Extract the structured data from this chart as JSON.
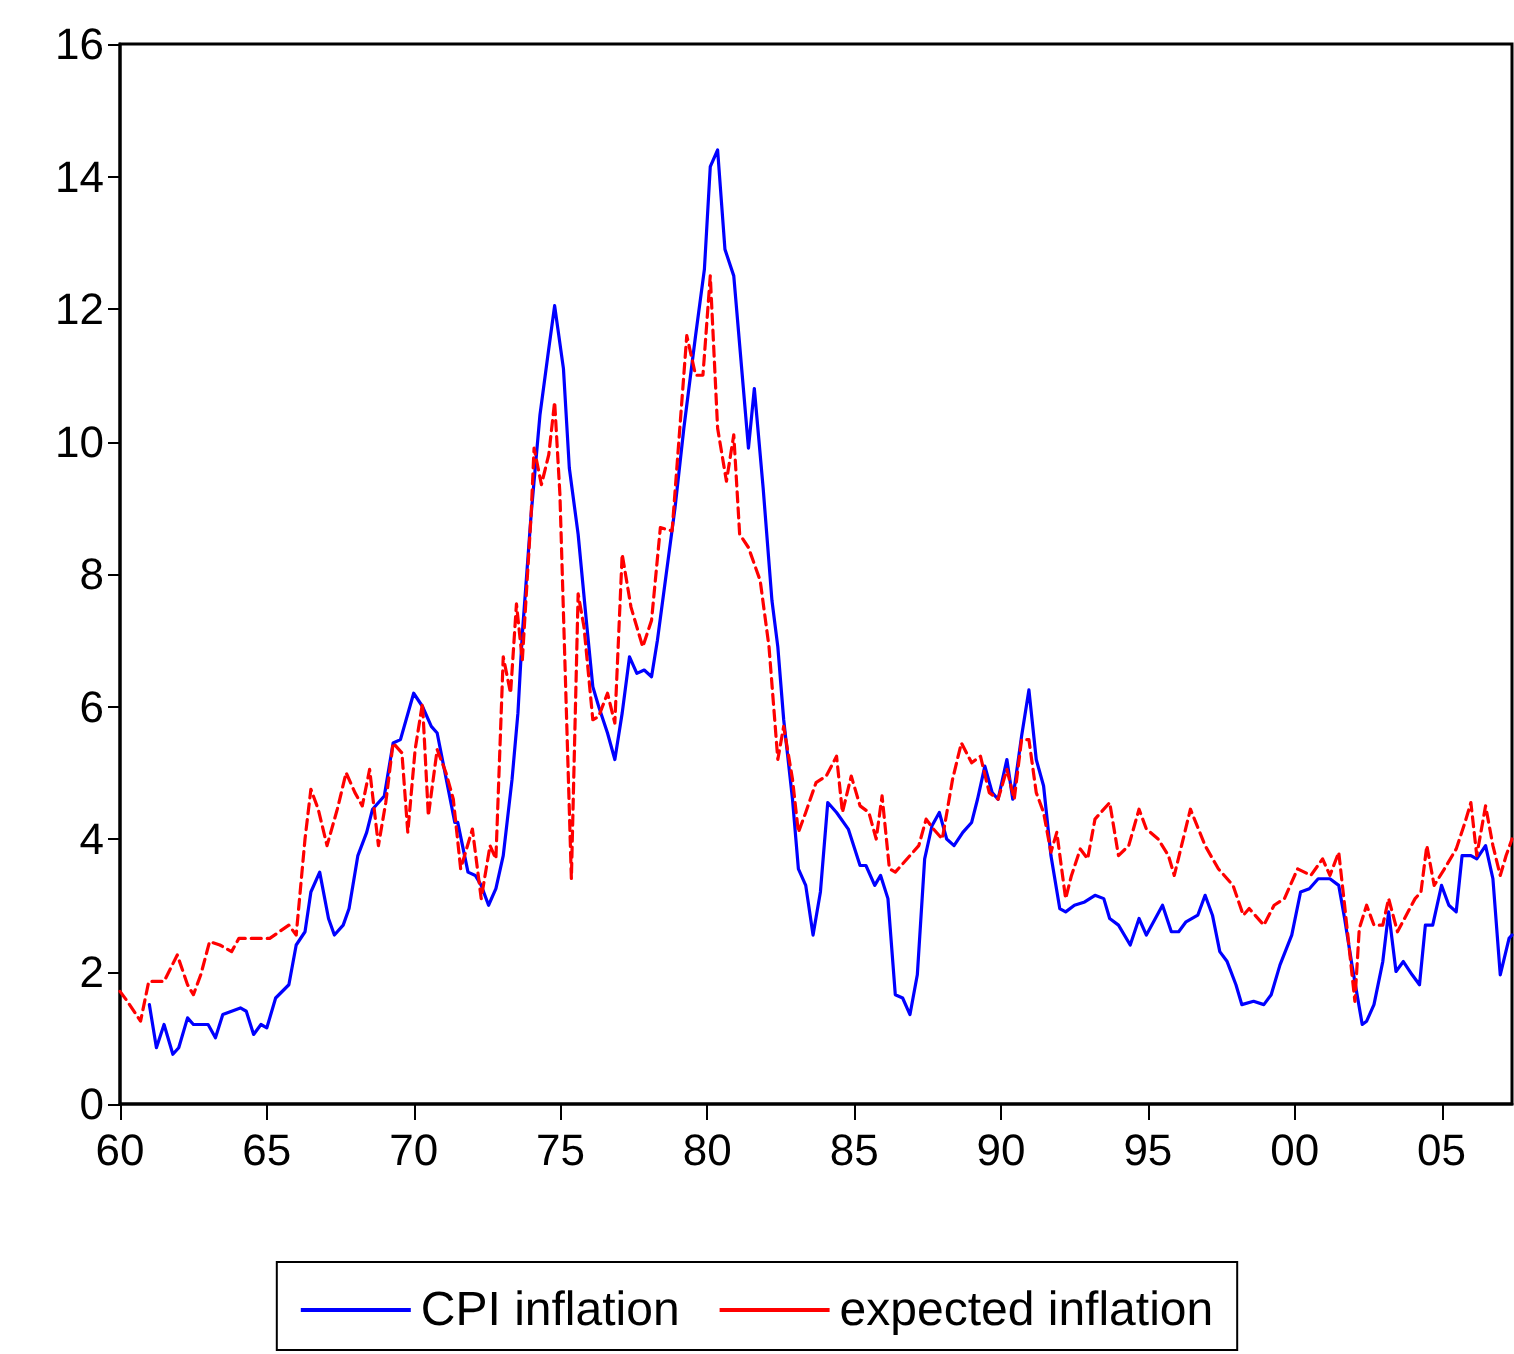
{
  "chart_data": {
    "type": "line",
    "xlim": [
      1960,
      2007.4
    ],
    "xticks": [
      {
        "value": 1960,
        "label": "60"
      },
      {
        "value": 1965,
        "label": "65"
      },
      {
        "value": 1970,
        "label": "70"
      },
      {
        "value": 1975,
        "label": "75"
      },
      {
        "value": 1980,
        "label": "80"
      },
      {
        "value": 1985,
        "label": "85"
      },
      {
        "value": 1990,
        "label": "90"
      },
      {
        "value": 1995,
        "label": "95"
      },
      {
        "value": 2000,
        "label": "00"
      },
      {
        "value": 2005,
        "label": "05"
      }
    ],
    "ylim": [
      0,
      16
    ],
    "yticks": [
      0,
      2,
      4,
      6,
      8,
      10,
      12,
      14,
      16
    ],
    "grid": false,
    "legend": "bottom",
    "marker": "none",
    "series": [
      {
        "name": "CPI inflation",
        "color": "#0000ff",
        "line_style": "solid",
        "x": [
          1961.0,
          1961.24,
          1961.5,
          1961.8,
          1962.0,
          1962.3,
          1962.5,
          1963.0,
          1963.25,
          1963.5,
          1964.1,
          1964.3,
          1964.55,
          1964.8,
          1965.0,
          1965.3,
          1965.75,
          1966.0,
          1966.3,
          1966.5,
          1966.8,
          1967.1,
          1967.3,
          1967.6,
          1967.8,
          1968.1,
          1968.4,
          1968.6,
          1969.0,
          1969.3,
          1969.55,
          1970.0,
          1970.3,
          1970.6,
          1970.8,
          1971.4,
          1971.5,
          1971.85,
          1972.1,
          1972.3,
          1972.55,
          1972.8,
          1973.05,
          1973.35,
          1973.55,
          1973.7,
          1974.0,
          1974.3,
          1974.6,
          1974.8,
          1975.1,
          1975.3,
          1975.6,
          1975.9,
          1976.1,
          1976.3,
          1976.6,
          1976.85,
          1977.1,
          1977.35,
          1977.6,
          1977.85,
          1978.1,
          1978.3,
          1978.6,
          1978.9,
          1979.2,
          1979.6,
          1979.9,
          1980.1,
          1980.35,
          1980.6,
          1980.9,
          1981.15,
          1981.4,
          1981.6,
          1981.9,
          1982.2,
          1982.4,
          1982.6,
          1982.9,
          1983.1,
          1983.35,
          1983.6,
          1983.85,
          1984.1,
          1984.4,
          1984.8,
          1985.2,
          1985.4,
          1985.7,
          1985.9,
          1986.15,
          1986.4,
          1986.65,
          1986.9,
          1987.15,
          1987.4,
          1987.65,
          1987.9,
          1988.15,
          1988.4,
          1988.7,
          1989.0,
          1989.2,
          1989.45,
          1989.7,
          1989.9,
          1990.2,
          1990.4,
          1990.7,
          1990.95,
          1991.2,
          1991.45,
          1991.7,
          1992.0,
          1992.2,
          1992.5,
          1992.85,
          1993.2,
          1993.5,
          1993.7,
          1994.0,
          1994.4,
          1994.7,
          1994.95,
          1995.5,
          1995.8,
          1996.05,
          1996.3,
          1996.7,
          1996.95,
          1997.2,
          1997.45,
          1997.7,
          1998.0,
          1998.2,
          1998.6,
          1998.95,
          1999.2,
          1999.5,
          1999.9,
          2000.2,
          2000.5,
          2000.8,
          2001.2,
          2001.5,
          2001.7,
          2001.95,
          2002.3,
          2002.45,
          2002.7,
          2003.0,
          2003.2,
          2003.45,
          2003.7,
          2004.0,
          2004.25,
          2004.45,
          2004.7,
          2005.0,
          2005.25,
          2005.5,
          2005.7,
          2006.0,
          2006.2,
          2006.5,
          2006.75,
          2007.0,
          2007.3,
          2007.4
        ],
        "values": [
          1.5,
          0.85,
          1.2,
          0.75,
          0.85,
          1.3,
          1.2,
          1.2,
          1.0,
          1.35,
          1.45,
          1.4,
          1.05,
          1.2,
          1.15,
          1.6,
          1.8,
          2.4,
          2.6,
          3.2,
          3.5,
          2.8,
          2.55,
          2.7,
          2.95,
          3.75,
          4.1,
          4.45,
          4.65,
          5.45,
          5.5,
          6.2,
          6.0,
          5.7,
          5.6,
          4.25,
          4.25,
          3.5,
          3.45,
          3.3,
          3.0,
          3.25,
          3.75,
          4.9,
          5.9,
          7.1,
          8.9,
          10.4,
          11.4,
          12.05,
          11.1,
          9.6,
          8.6,
          7.2,
          6.3,
          6.0,
          5.6,
          5.2,
          5.9,
          6.75,
          6.5,
          6.55,
          6.45,
          7.0,
          8.0,
          9.0,
          10.2,
          11.6,
          12.6,
          14.15,
          14.4,
          12.9,
          12.5,
          11.2,
          9.9,
          10.8,
          9.3,
          7.6,
          6.9,
          5.8,
          4.6,
          3.55,
          3.3,
          2.55,
          3.2,
          4.55,
          4.4,
          4.15,
          3.6,
          3.6,
          3.3,
          3.45,
          3.1,
          1.65,
          1.6,
          1.35,
          1.95,
          3.7,
          4.2,
          4.4,
          4.0,
          3.9,
          4.1,
          4.25,
          4.6,
          5.1,
          4.7,
          4.6,
          5.2,
          4.6,
          5.55,
          6.25,
          5.2,
          4.8,
          3.75,
          2.95,
          2.9,
          3.0,
          3.05,
          3.15,
          3.1,
          2.8,
          2.7,
          2.4,
          2.8,
          2.55,
          3.0,
          2.6,
          2.6,
          2.75,
          2.85,
          3.15,
          2.85,
          2.3,
          2.15,
          1.8,
          1.5,
          1.55,
          1.5,
          1.65,
          2.1,
          2.55,
          3.2,
          3.25,
          3.4,
          3.4,
          3.3,
          2.8,
          2.1,
          1.2,
          1.25,
          1.5,
          2.15,
          2.9,
          2.0,
          2.15,
          1.95,
          1.8,
          2.7,
          2.7,
          3.3,
          3.0,
          2.9,
          3.75,
          3.75,
          3.7,
          3.9,
          3.4,
          1.95,
          2.5,
          2.55
        ]
      },
      {
        "name": "expected inflation",
        "color": "#ff0000",
        "line_style": "dashed",
        "x": [
          1960.0,
          1960.25,
          1960.7,
          1960.98,
          1961.5,
          1961.95,
          1962.3,
          1962.5,
          1962.75,
          1963.05,
          1963.4,
          1963.8,
          1964.05,
          1964.45,
          1965.1,
          1965.75,
          1966.0,
          1966.3,
          1966.5,
          1966.75,
          1967.05,
          1967.4,
          1967.7,
          1968.0,
          1968.25,
          1968.5,
          1968.8,
          1969.05,
          1969.3,
          1969.6,
          1969.8,
          1970.05,
          1970.3,
          1970.5,
          1970.8,
          1971.1,
          1971.35,
          1971.6,
          1971.8,
          1972.0,
          1972.3,
          1972.6,
          1972.8,
          1973.05,
          1973.3,
          1973.5,
          1973.7,
          1974.0,
          1974.1,
          1974.35,
          1974.6,
          1974.8,
          1974.98,
          1975.37,
          1975.6,
          1975.8,
          1976.1,
          1976.3,
          1976.6,
          1976.85,
          1977.1,
          1977.4,
          1977.8,
          1978.1,
          1978.4,
          1978.8,
          1979.3,
          1979.6,
          1979.85,
          1980.1,
          1980.35,
          1980.65,
          1980.9,
          1981.1,
          1981.4,
          1981.8,
          1982.1,
          1982.4,
          1982.6,
          1982.9,
          1983.1,
          1983.35,
          1983.7,
          1984.05,
          1984.4,
          1984.6,
          1984.9,
          1985.2,
          1985.5,
          1985.75,
          1985.95,
          1986.2,
          1986.4,
          1986.9,
          1987.2,
          1987.45,
          1987.7,
          1988.0,
          1988.35,
          1988.65,
          1989.0,
          1989.3,
          1989.6,
          1989.9,
          1990.2,
          1990.45,
          1990.7,
          1990.95,
          1991.2,
          1991.45,
          1991.7,
          1991.9,
          1992.2,
          1992.4,
          1992.7,
          1992.95,
          1993.2,
          1993.7,
          1994.0,
          1994.35,
          1994.7,
          1994.95,
          1995.35,
          1995.7,
          1995.9,
          1996.45,
          1996.95,
          1997.4,
          1997.9,
          1998.25,
          1998.45,
          1998.95,
          1999.3,
          1999.65,
          2000.1,
          2000.55,
          2000.95,
          2001.2,
          2001.5,
          2001.7,
          2002.05,
          2002.2,
          2002.45,
          2002.7,
          2003.0,
          2003.2,
          2003.5,
          2004.1,
          2004.3,
          2004.5,
          2004.75,
          2005.1,
          2005.5,
          2005.8,
          2006.0,
          2006.2,
          2006.5,
          2006.75,
          2007.0,
          2007.2,
          2007.4
        ],
        "values": [
          1.7,
          1.55,
          1.25,
          1.85,
          1.85,
          2.25,
          1.8,
          1.65,
          1.95,
          2.45,
          2.4,
          2.3,
          2.5,
          2.5,
          2.5,
          2.7,
          2.55,
          4.0,
          4.75,
          4.45,
          3.9,
          4.45,
          5.0,
          4.7,
          4.5,
          5.05,
          3.9,
          4.55,
          5.45,
          5.3,
          4.1,
          5.35,
          6.05,
          4.35,
          5.35,
          5.0,
          4.6,
          3.55,
          3.85,
          4.15,
          3.1,
          3.9,
          3.7,
          6.75,
          6.2,
          7.55,
          6.7,
          8.9,
          9.9,
          9.35,
          9.8,
          10.6,
          9.2,
          3.4,
          7.7,
          7.2,
          5.8,
          5.85,
          6.2,
          5.75,
          8.3,
          7.5,
          6.9,
          7.3,
          8.7,
          8.65,
          11.6,
          11.0,
          11.0,
          12.5,
          10.2,
          9.4,
          10.1,
          8.6,
          8.4,
          7.9,
          6.9,
          5.2,
          5.7,
          4.9,
          4.1,
          4.4,
          4.85,
          4.95,
          5.25,
          4.4,
          4.95,
          4.5,
          4.4,
          4.0,
          4.65,
          3.55,
          3.5,
          3.75,
          3.9,
          4.3,
          4.15,
          4.0,
          4.9,
          5.45,
          5.15,
          5.25,
          4.7,
          4.6,
          5.05,
          4.6,
          5.5,
          5.5,
          4.7,
          4.4,
          3.8,
          4.1,
          3.1,
          3.45,
          3.85,
          3.7,
          4.3,
          4.55,
          3.75,
          3.9,
          4.45,
          4.15,
          4.0,
          3.75,
          3.45,
          4.45,
          3.9,
          3.55,
          3.3,
          2.85,
          2.95,
          2.7,
          3.0,
          3.1,
          3.55,
          3.45,
          3.7,
          3.45,
          3.8,
          3.0,
          1.55,
          2.65,
          3.0,
          2.7,
          2.7,
          3.1,
          2.6,
          3.1,
          3.2,
          3.9,
          3.3,
          3.55,
          3.85,
          4.25,
          4.55,
          3.75,
          4.5,
          3.9,
          3.45,
          3.75,
          4.0
        ]
      }
    ]
  }
}
